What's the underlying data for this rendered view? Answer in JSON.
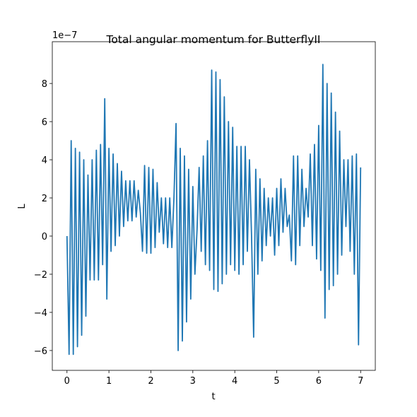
{
  "chart_data": {
    "type": "line",
    "title": "Total angular momentum for ButterflyII",
    "xlabel": "t",
    "ylabel": "L",
    "y_offset_label": "1e−7",
    "x": [
      0,
      0.05,
      0.1,
      0.15,
      0.2,
      0.25,
      0.3,
      0.35,
      0.4,
      0.45,
      0.5,
      0.55,
      0.6,
      0.65,
      0.7,
      0.75,
      0.8,
      0.85,
      0.9,
      0.95,
      1,
      1.05,
      1.1,
      1.15,
      1.2,
      1.25,
      1.3,
      1.35,
      1.4,
      1.45,
      1.5,
      1.55,
      1.6,
      1.65,
      1.7,
      1.75,
      1.8,
      1.85,
      1.9,
      1.95,
      2,
      2.05,
      2.1,
      2.15,
      2.2,
      2.25,
      2.3,
      2.35,
      2.4,
      2.45,
      2.5,
      2.55,
      2.6,
      2.65,
      2.7,
      2.75,
      2.8,
      2.85,
      2.9,
      2.95,
      3,
      3.05,
      3.1,
      3.15,
      3.2,
      3.25,
      3.3,
      3.35,
      3.4,
      3.45,
      3.5,
      3.55,
      3.6,
      3.65,
      3.7,
      3.75,
      3.8,
      3.85,
      3.9,
      3.95,
      4,
      4.05,
      4.1,
      4.15,
      4.2,
      4.25,
      4.3,
      4.35,
      4.4,
      4.45,
      4.5,
      4.55,
      4.6,
      4.65,
      4.7,
      4.75,
      4.8,
      4.85,
      4.9,
      4.95,
      5,
      5.05,
      5.1,
      5.15,
      5.2,
      5.25,
      5.3,
      5.35,
      5.4,
      5.45,
      5.5,
      5.55,
      5.6,
      5.65,
      5.7,
      5.75,
      5.8,
      5.85,
      5.9,
      5.95,
      6,
      6.05,
      6.1,
      6.15,
      6.2,
      6.25,
      6.3,
      6.35,
      6.4,
      6.45,
      6.5,
      6.55,
      6.6,
      6.65,
      6.7,
      6.75,
      6.8,
      6.85,
      6.9,
      6.95,
      7
    ],
    "series": [
      {
        "name": "L",
        "color": "#1f77b4",
        "values": [
          0,
          -6.2,
          5.0,
          -6.2,
          4.6,
          -5.8,
          4.4,
          -5.2,
          4.0,
          -4.2,
          3.2,
          -2.3,
          4.0,
          -2.3,
          4.5,
          -2.3,
          4.8,
          -1.5,
          7.2,
          -3.3,
          4.6,
          -0.8,
          4.3,
          -0.5,
          3.8,
          0.0,
          3.4,
          0.5,
          2.9,
          0.8,
          2.9,
          0.8,
          2.9,
          1.0,
          2.4,
          1.2,
          -0.8,
          3.7,
          -0.9,
          3.6,
          -0.9,
          3.5,
          -0.6,
          2.8,
          0.2,
          2.0,
          -0.4,
          2.0,
          -0.6,
          2.0,
          -0.6,
          2.0,
          5.9,
          -6.0,
          4.6,
          -5.5,
          4.2,
          -4.5,
          3.5,
          -3.3,
          2.6,
          -2.0,
          0.3,
          3.6,
          -0.8,
          4.2,
          -1.5,
          5.0,
          -1.8,
          8.7,
          -2.8,
          8.6,
          -2.9,
          8.2,
          -2.5,
          7.3,
          -2.0,
          6.0,
          -1.5,
          5.7,
          -1.8,
          4.7,
          -2.0,
          4.7,
          -1.5,
          4.7,
          -0.8,
          4.0,
          0.0,
          -5.3,
          3.5,
          -2.0,
          3.0,
          -1.3,
          2.5,
          -0.5,
          2.0,
          0.0,
          2.0,
          -1.0,
          2.5,
          -0.5,
          3.0,
          0.2,
          2.5,
          0.5,
          1.1,
          -1.3,
          4.2,
          -1.5,
          4.2,
          -0.5,
          3.5,
          0.5,
          2.5,
          1.0,
          4.3,
          -0.5,
          4.8,
          -1.2,
          5.8,
          -1.8,
          9.0,
          -4.3,
          8.0,
          -2.8,
          7.5,
          -2.6,
          6.5,
          -2.0,
          5.5,
          -1.0,
          4.0,
          0.5,
          4.0,
          -0.8,
          4.2,
          -2.0,
          4.3,
          -5.7,
          3.6
        ]
      }
    ],
    "xlim": [
      -0.35,
      7.35
    ],
    "ylim": [
      -7.04,
      10.19
    ],
    "xticks": [
      0,
      1,
      2,
      3,
      4,
      5,
      6,
      7
    ],
    "yticks": [
      {
        "value": -6,
        "label": "−6"
      },
      {
        "value": -4,
        "label": "−4"
      },
      {
        "value": -2,
        "label": "−2"
      },
      0,
      2,
      4,
      6,
      8
    ]
  }
}
